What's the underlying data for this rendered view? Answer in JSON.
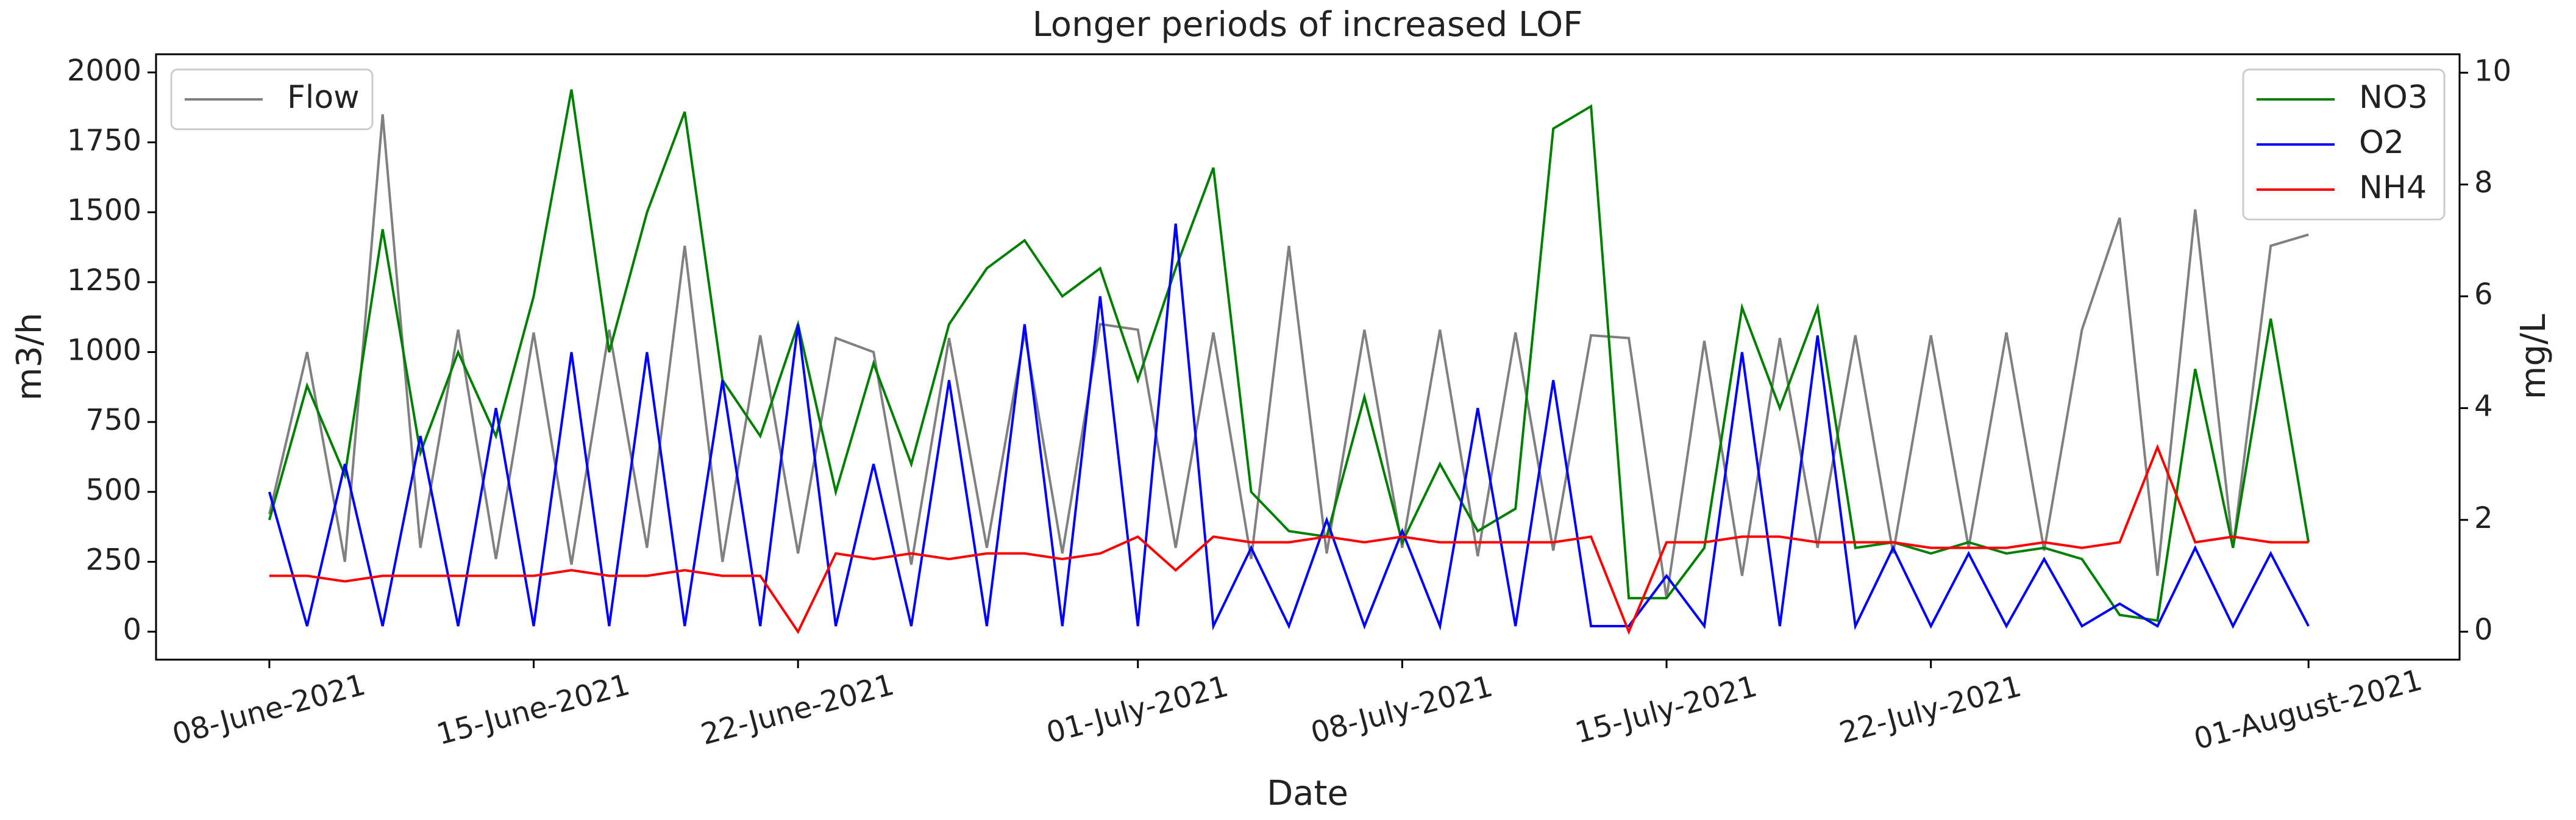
{
  "chart_data": {
    "type": "line",
    "title": "Longer periods of increased LOF",
    "xlabel": "Date",
    "ylabel": "m3/h",
    "y2label": "mg/L",
    "x": [
      "2021-06-08",
      "2021-06-09",
      "2021-06-10",
      "2021-06-11",
      "2021-06-12",
      "2021-06-13",
      "2021-06-14",
      "2021-06-15",
      "2021-06-16",
      "2021-06-17",
      "2021-06-18",
      "2021-06-19",
      "2021-06-20",
      "2021-06-21",
      "2021-06-22",
      "2021-06-23",
      "2021-06-24",
      "2021-06-25",
      "2021-06-26",
      "2021-06-27",
      "2021-06-28",
      "2021-06-29",
      "2021-06-30",
      "2021-07-01",
      "2021-07-02",
      "2021-07-03",
      "2021-07-04",
      "2021-07-05",
      "2021-07-06",
      "2021-07-07",
      "2021-07-08",
      "2021-07-09",
      "2021-07-10",
      "2021-07-11",
      "2021-07-12",
      "2021-07-13",
      "2021-07-14",
      "2021-07-15",
      "2021-07-16",
      "2021-07-17",
      "2021-07-18",
      "2021-07-19",
      "2021-07-20",
      "2021-07-21",
      "2021-07-22",
      "2021-07-23",
      "2021-07-24",
      "2021-07-25",
      "2021-07-26",
      "2021-07-27",
      "2021-07-28",
      "2021-07-29",
      "2021-07-30",
      "2021-07-31",
      "2021-08-01"
    ],
    "xlim": [
      "2021-06-05",
      "2021-08-05"
    ],
    "xticks": [
      {
        "value": "2021-06-08",
        "label": "08-June-2021"
      },
      {
        "value": "2021-06-15",
        "label": "15-June-2021"
      },
      {
        "value": "2021-06-22",
        "label": "22-June-2021"
      },
      {
        "value": "2021-07-01",
        "label": "01-July-2021"
      },
      {
        "value": "2021-07-08",
        "label": "08-July-2021"
      },
      {
        "value": "2021-07-15",
        "label": "15-July-2021"
      },
      {
        "value": "2021-07-22",
        "label": "22-July-2021"
      },
      {
        "value": "2021-08-01",
        "label": "01-August-2021"
      }
    ],
    "ylim": [
      -100,
      2065
    ],
    "yticks": [
      0,
      250,
      500,
      750,
      1000,
      1250,
      1500,
      1750,
      2000
    ],
    "y2lim": [
      -0.5,
      10.33
    ],
    "y2ticks": [
      0,
      2,
      4,
      6,
      8,
      10
    ],
    "legend": "upper left",
    "legend2": "upper right",
    "series": [
      {
        "name": "Flow",
        "color": "#808080",
        "axis": "y",
        "values": [
          420,
          1000,
          250,
          1850,
          300,
          1080,
          260,
          1070,
          240,
          1080,
          300,
          1380,
          250,
          1060,
          280,
          1050,
          1000,
          240,
          1050,
          300,
          1070,
          280,
          1100,
          1080,
          300,
          1070,
          260,
          1380,
          280,
          1080,
          300,
          1080,
          270,
          1070,
          290,
          1060,
          1050,
          120,
          1040,
          200,
          1050,
          300,
          1060,
          280,
          1060,
          300,
          1070,
          290,
          1080,
          1480,
          200,
          1510,
          300,
          1380,
          1420
        ]
      },
      {
        "name": "NO3",
        "color": "#008000",
        "axis": "y2",
        "values": [
          2.0,
          4.4,
          2.8,
          7.2,
          3.2,
          5.0,
          3.5,
          6.0,
          9.7,
          5.0,
          7.5,
          9.3,
          4.5,
          3.5,
          5.5,
          2.5,
          4.8,
          3.0,
          5.5,
          6.5,
          7.0,
          6.0,
          6.5,
          4.5,
          6.5,
          8.3,
          2.5,
          1.8,
          1.7,
          4.2,
          1.6,
          3.0,
          1.8,
          2.2,
          9.0,
          9.4,
          0.6,
          0.6,
          1.5,
          5.8,
          4.0,
          5.8,
          1.5,
          1.6,
          1.4,
          1.6,
          1.4,
          1.5,
          1.3,
          0.3,
          0.2,
          4.7,
          1.5,
          5.6,
          1.6
        ]
      },
      {
        "name": "O2",
        "color": "#0000ff",
        "axis": "y2",
        "values": [
          2.5,
          0.1,
          3.0,
          0.1,
          3.5,
          0.1,
          4.0,
          0.1,
          5.0,
          0.1,
          5.0,
          0.1,
          4.5,
          0.1,
          5.5,
          0.1,
          3.0,
          0.1,
          4.5,
          0.1,
          5.5,
          0.1,
          6.0,
          0.1,
          7.3,
          0.1,
          1.5,
          0.1,
          2.0,
          0.1,
          1.8,
          0.1,
          4.0,
          0.1,
          4.5,
          0.1,
          0.1,
          1.0,
          0.1,
          5.0,
          0.1,
          5.3,
          0.1,
          1.5,
          0.1,
          1.4,
          0.1,
          1.3,
          0.1,
          0.5,
          0.1,
          1.5,
          0.1,
          1.4,
          0.1
        ]
      },
      {
        "name": "NH4",
        "color": "#ff0000",
        "axis": "y2",
        "values": [
          1.0,
          1.0,
          0.9,
          1.0,
          1.0,
          1.0,
          1.0,
          1.0,
          1.1,
          1.0,
          1.0,
          1.1,
          1.0,
          1.0,
          0.0,
          1.4,
          1.3,
          1.4,
          1.3,
          1.4,
          1.4,
          1.3,
          1.4,
          1.7,
          1.1,
          1.7,
          1.6,
          1.6,
          1.7,
          1.6,
          1.7,
          1.6,
          1.6,
          1.6,
          1.6,
          1.7,
          0.0,
          1.6,
          1.6,
          1.7,
          1.7,
          1.6,
          1.6,
          1.6,
          1.5,
          1.5,
          1.5,
          1.6,
          1.5,
          1.6,
          3.3,
          1.6,
          1.7,
          1.6,
          1.6
        ]
      }
    ]
  }
}
